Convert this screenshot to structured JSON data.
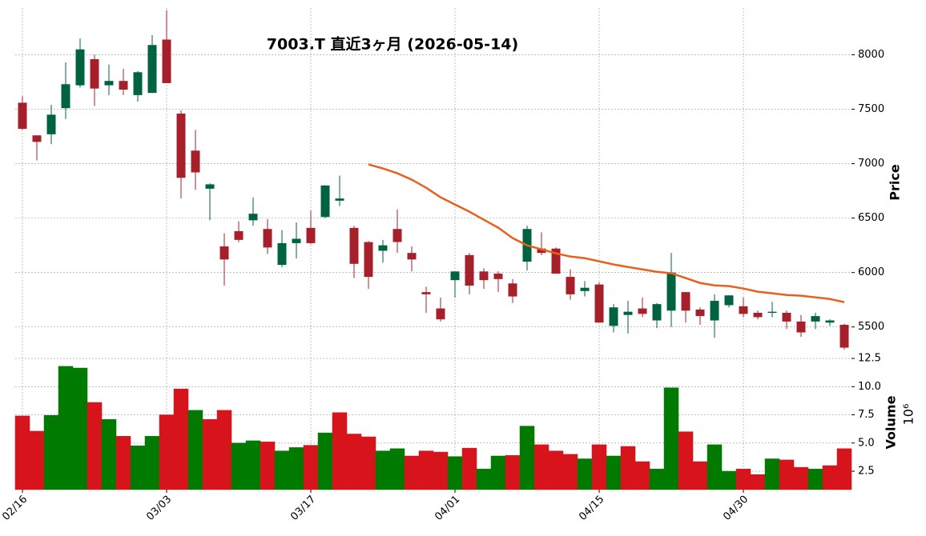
{
  "chart_data": {
    "type": "candlestick",
    "title": "7003.T  直近3ヶ月 (2026-05-14)",
    "categories": [
      "02/16",
      null,
      null,
      null,
      null,
      null,
      null,
      null,
      null,
      null,
      "03/03",
      null,
      null,
      null,
      null,
      null,
      null,
      null,
      null,
      null,
      "03/17",
      null,
      null,
      null,
      null,
      null,
      null,
      null,
      null,
      null,
      "04/01",
      null,
      null,
      null,
      null,
      null,
      null,
      null,
      null,
      null,
      "04/15",
      null,
      null,
      null,
      null,
      null,
      null,
      null,
      null,
      null,
      "04/30",
      null,
      null,
      null,
      null,
      null,
      null,
      null
    ],
    "open": [
      7560,
      7260,
      7270,
      7510,
      7720,
      7960,
      7720,
      7760,
      7630,
      7650,
      8140,
      7460,
      7120,
      6770,
      6240,
      6380,
      6480,
      6400,
      6070,
      6270,
      6410,
      6510,
      6660,
      6410,
      6280,
      6200,
      6400,
      6180,
      5820,
      5670,
      5930,
      6160,
      6010,
      5990,
      5900,
      6100,
      6220,
      6220,
      5960,
      5830,
      5890,
      5510,
      5610,
      5670,
      5560,
      5650,
      5820,
      5660,
      5560,
      5700,
      5690,
      5630,
      5630,
      5630,
      5550,
      5550,
      5540,
      5520
    ],
    "high": [
      7620,
      7260,
      7540,
      7930,
      8150,
      8000,
      7910,
      7870,
      7850,
      8180,
      8410,
      7490,
      7310,
      6820,
      6360,
      6470,
      6690,
      6490,
      6390,
      6460,
      6570,
      6800,
      6890,
      6430,
      6290,
      6300,
      6580,
      6240,
      5870,
      5770,
      6010,
      6180,
      6040,
      6010,
      5940,
      6430,
      6370,
      6230,
      6030,
      5920,
      5910,
      5710,
      5740,
      5770,
      5720,
      6180,
      5820,
      5680,
      5800,
      5790,
      5770,
      5650,
      5730,
      5650,
      5610,
      5630,
      5570,
      5530
    ],
    "low": [
      7310,
      7030,
      7180,
      7410,
      7700,
      7530,
      7630,
      7630,
      7570,
      7650,
      7740,
      6680,
      6760,
      6480,
      5880,
      6280,
      6430,
      6170,
      6050,
      6130,
      6260,
      6500,
      6610,
      5950,
      5850,
      6090,
      6180,
      6010,
      5630,
      5550,
      5770,
      5800,
      5850,
      5820,
      5720,
      6020,
      6160,
      5990,
      5750,
      5780,
      5540,
      5450,
      5440,
      5590,
      5490,
      5500,
      5540,
      5520,
      5400,
      5680,
      5590,
      5570,
      5590,
      5480,
      5410,
      5480,
      5510,
      5290
    ],
    "close": [
      7320,
      7200,
      7450,
      7730,
      8050,
      7690,
      7760,
      7680,
      7840,
      8090,
      7740,
      6870,
      6920,
      6810,
      6120,
      6300,
      6540,
      6230,
      6270,
      6310,
      6270,
      6800,
      6680,
      6080,
      5960,
      6250,
      6280,
      6120,
      5800,
      5570,
      6010,
      5880,
      5930,
      5940,
      5780,
      6400,
      6180,
      5990,
      5800,
      5860,
      5540,
      5680,
      5640,
      5620,
      5710,
      6000,
      5650,
      5600,
      5740,
      5790,
      5620,
      5590,
      5640,
      5550,
      5450,
      5600,
      5560,
      5310
    ],
    "up_color": "#006340",
    "down_color": "#a5202a",
    "ma": {
      "color": "#e8601c",
      "values": [
        null,
        null,
        null,
        null,
        null,
        null,
        null,
        null,
        null,
        null,
        null,
        null,
        null,
        null,
        null,
        null,
        null,
        null,
        null,
        null,
        null,
        null,
        null,
        null,
        6993,
        6956,
        6912,
        6853,
        6779,
        6691,
        6625,
        6559,
        6485,
        6412,
        6316,
        6250,
        6213,
        6176,
        6147,
        6132,
        6103,
        6074,
        6051,
        6029,
        6007,
        5993,
        5949,
        5904,
        5882,
        5875,
        5853,
        5824,
        5809,
        5794,
        5787,
        5772,
        5757,
        5728
      ]
    },
    "ylabel": "Price",
    "ylim": [
      5270,
      8430
    ],
    "yticks": [
      5500,
      6000,
      6500,
      7000,
      7500,
      8000
    ],
    "grid": true,
    "volume": {
      "ylabel": "Volume",
      "scale_label": "10⁶",
      "up_color": "#007a00",
      "down_color": "#d7141c",
      "values": [
        7.4,
        6.05,
        7.45,
        11.8,
        11.65,
        8.6,
        7.1,
        5.6,
        4.75,
        5.6,
        7.5,
        9.8,
        7.9,
        7.1,
        7.9,
        5.0,
        5.2,
        5.1,
        4.3,
        4.6,
        4.8,
        5.9,
        7.7,
        5.8,
        5.55,
        4.3,
        4.5,
        3.85,
        4.3,
        4.2,
        3.8,
        4.55,
        2.7,
        3.85,
        3.9,
        6.5,
        4.85,
        4.3,
        4.0,
        3.6,
        4.85,
        3.85,
        4.7,
        3.35,
        2.7,
        9.9,
        6.0,
        3.35,
        4.85,
        2.5,
        2.7,
        2.2,
        3.6,
        3.5,
        2.85,
        2.7,
        3.0,
        4.5
      ],
      "ylim": [
        0.87,
        13.07
      ],
      "yticks": [
        2.5,
        {
          "value": 5,
          "label": "5.0"
        },
        7.5,
        {
          "value": 10,
          "label": "10.0"
        },
        12.5
      ]
    }
  }
}
